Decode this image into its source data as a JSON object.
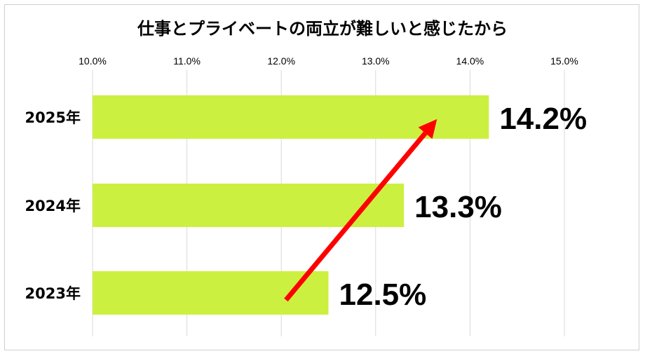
{
  "chart_data": {
    "type": "bar",
    "orientation": "horizontal",
    "title": "仕事とプライベートの両立が難しいと感じたから",
    "categories": [
      "2025年",
      "2024年",
      "2023年"
    ],
    "values": [
      14.2,
      13.3,
      12.5
    ],
    "value_labels": [
      "14.2%",
      "13.3%",
      "12.5%"
    ],
    "xlim": [
      10.0,
      15.0
    ],
    "x_ticks": [
      10.0,
      11.0,
      12.0,
      13.0,
      14.0,
      15.0
    ],
    "x_tick_labels": [
      "10.0%",
      "11.0%",
      "12.0%",
      "13.0%",
      "14.0%",
      "15.0%"
    ],
    "x_axis_position": "top",
    "grid": true,
    "legend": "none",
    "colors": {
      "bar": "#ccf040",
      "grid": "#d9d9d9",
      "arrow": "#ff0000"
    },
    "annotation": {
      "type": "arrow",
      "from": {
        "category": "2023年",
        "x": 12.05
      },
      "to": {
        "category": "2025年",
        "x": 13.65
      }
    }
  }
}
